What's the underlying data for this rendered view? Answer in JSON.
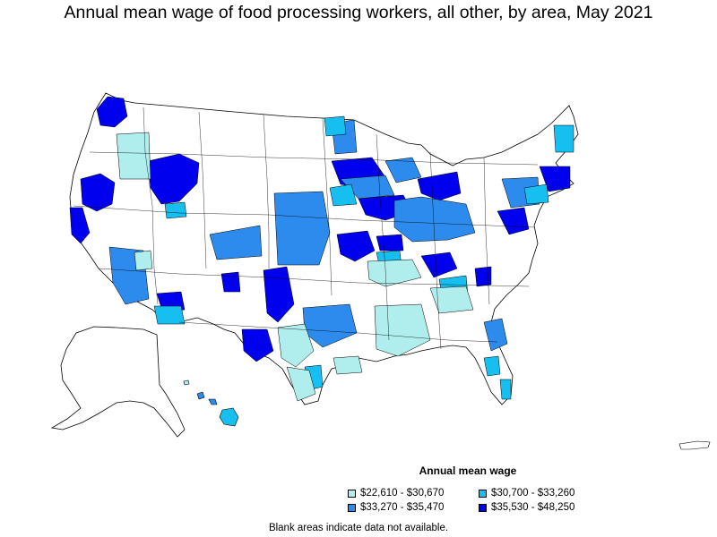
{
  "title": "Annual mean wage of food processing workers, all other, by area, May 2021",
  "legend": {
    "title": "Annual mean wage",
    "items": [
      {
        "label": "$22,610 - $30,670",
        "color": "#b0eeee"
      },
      {
        "label": "$30,700 - $33,260",
        "color": "#16bff0"
      },
      {
        "label": "$33,270 - $35,470",
        "color": "#2d8bee"
      },
      {
        "label": "$35,530 - $48,250",
        "color": "#0000ee"
      }
    ]
  },
  "footnote": "Blank areas indicate data not available.",
  "map": {
    "outline_color": "#000000",
    "blank_color": "#ffffff"
  }
}
